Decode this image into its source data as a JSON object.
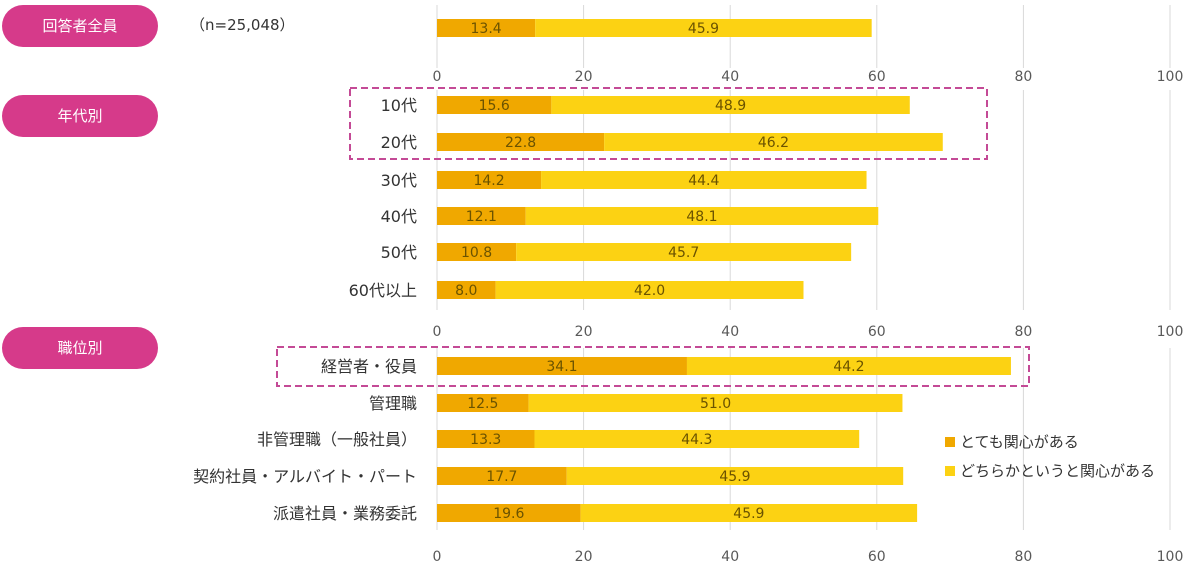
{
  "colors": {
    "series_a": "#F0A800",
    "series_b": "#FCD213",
    "pill": "#D63A8A",
    "grid": "#d9d9d9",
    "highlight": "#C44A96"
  },
  "sections": [
    {
      "title": "回答者全員",
      "note": "（n=25,048）"
    },
    {
      "title": "年代別",
      "note": ""
    },
    {
      "title": "職位別",
      "note": ""
    }
  ],
  "chart_data": [
    {
      "type": "bar",
      "stacked": true,
      "orientation": "horizontal",
      "categories": [
        ""
      ],
      "series": [
        {
          "name": "とても関心がある",
          "values": [
            13.4
          ]
        },
        {
          "name": "どちらかというと関心がある",
          "values": [
            45.9
          ]
        }
      ],
      "xlim": [
        0,
        100
      ],
      "ticks": [
        "0",
        "20",
        "40",
        "60",
        "80",
        "100"
      ],
      "grid": true
    },
    {
      "type": "bar",
      "stacked": true,
      "orientation": "horizontal",
      "categories": [
        "10代",
        "20代",
        "30代",
        "40代",
        "50代",
        "60代以上"
      ],
      "series": [
        {
          "name": "とても関心がある",
          "values": [
            15.6,
            22.8,
            14.2,
            12.1,
            10.8,
            8.0
          ]
        },
        {
          "name": "どちらかというと関心がある",
          "values": [
            48.9,
            46.2,
            44.4,
            48.1,
            45.7,
            42.0
          ]
        }
      ],
      "value_labels_a": [
        "15.6",
        "22.8",
        "14.2",
        "12.1",
        "10.8",
        "8.0"
      ],
      "value_labels_b": [
        "48.9",
        "46.2",
        "44.4",
        "48.1",
        "45.7",
        "42.0"
      ],
      "xlim": [
        0,
        100
      ],
      "ticks": [
        "0",
        "20",
        "40",
        "60",
        "80",
        "100"
      ],
      "grid": true
    },
    {
      "type": "bar",
      "stacked": true,
      "orientation": "horizontal",
      "categories": [
        "経営者・役員",
        "管理職",
        "非管理職（一般社員）",
        "契約社員・アルバイト・パート",
        "派遣社員・業務委託"
      ],
      "series": [
        {
          "name": "とても関心がある",
          "values": [
            34.1,
            12.5,
            13.3,
            17.7,
            19.6
          ]
        },
        {
          "name": "どちらかというと関心がある",
          "values": [
            44.2,
            51.0,
            44.3,
            45.9,
            45.9
          ]
        }
      ],
      "value_labels_a": [
        "34.1",
        "12.5",
        "13.3",
        "17.7",
        "19.6"
      ],
      "value_labels_b": [
        "44.2",
        "51.0",
        "44.3",
        "45.9",
        "45.9"
      ],
      "xlim": [
        0,
        100
      ],
      "ticks": [
        "0",
        "20",
        "40",
        "60",
        "80",
        "100"
      ],
      "grid": true
    }
  ],
  "legend": {
    "items": [
      {
        "label": "とても関心がある"
      },
      {
        "label": "どちらかというと関心がある"
      }
    ]
  }
}
